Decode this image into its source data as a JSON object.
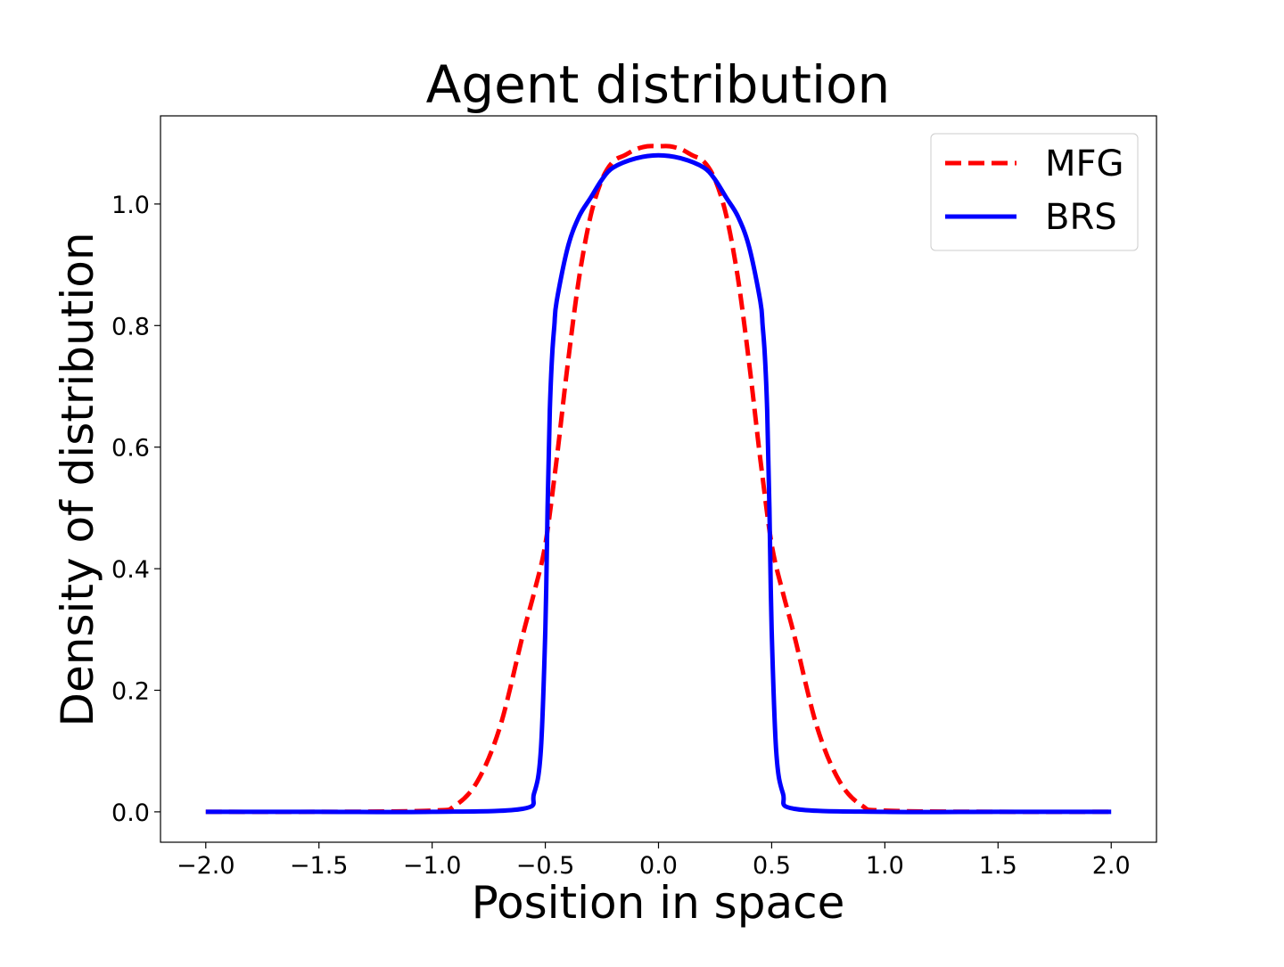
{
  "chart_data": {
    "type": "line",
    "title": "Agent distribution",
    "xlabel": "Position in space",
    "ylabel": "Density of distribution",
    "xlim": [
      -2.2,
      2.2
    ],
    "ylim": [
      -0.05,
      1.145
    ],
    "xticks": [
      -2.0,
      -1.5,
      -1.0,
      -0.5,
      0.0,
      0.5,
      1.0,
      1.5,
      2.0
    ],
    "xtick_labels": [
      "−2.0",
      "−1.5",
      "−1.0",
      "−0.5",
      "0.0",
      "0.5",
      "1.0",
      "1.5",
      "2.0"
    ],
    "yticks": [
      0.0,
      0.2,
      0.4,
      0.6,
      0.8,
      1.0
    ],
    "ytick_labels": [
      "0.0",
      "0.2",
      "0.4",
      "0.6",
      "0.8",
      "1.0"
    ],
    "grid": false,
    "legend": "top-right",
    "series": [
      {
        "name": "MFG",
        "color": "#ff0000",
        "style": "dashed",
        "x": [
          -2.0,
          -1.5,
          -1.0,
          -0.9,
          -0.8,
          -0.7,
          -0.6,
          -0.55,
          -0.5,
          -0.45,
          -0.4,
          -0.35,
          -0.3,
          -0.25,
          -0.2,
          -0.15,
          -0.1,
          -0.05,
          0.0,
          0.05,
          0.1,
          0.15,
          0.2,
          0.25,
          0.3,
          0.35,
          0.4,
          0.45,
          0.5,
          0.55,
          0.6,
          0.7,
          0.8,
          0.9,
          1.0,
          1.5,
          2.0
        ],
        "y": [
          0.0,
          0.0,
          0.002,
          0.01,
          0.05,
          0.14,
          0.29,
          0.36,
          0.44,
          0.58,
          0.74,
          0.88,
          0.98,
          1.04,
          1.07,
          1.08,
          1.09,
          1.095,
          1.095,
          1.095,
          1.09,
          1.08,
          1.07,
          1.04,
          0.98,
          0.88,
          0.74,
          0.58,
          0.44,
          0.36,
          0.29,
          0.14,
          0.05,
          0.01,
          0.002,
          0.0,
          0.0
        ]
      },
      {
        "name": "BRS",
        "color": "#0000ff",
        "style": "solid",
        "x": [
          -2.0,
          -1.5,
          -1.0,
          -0.6,
          -0.55,
          -0.52,
          -0.5,
          -0.49,
          -0.48,
          -0.47,
          -0.46,
          -0.45,
          -0.4,
          -0.35,
          -0.3,
          -0.25,
          -0.2,
          -0.1,
          0.0,
          0.1,
          0.2,
          0.25,
          0.3,
          0.35,
          0.4,
          0.45,
          0.46,
          0.47,
          0.48,
          0.49,
          0.5,
          0.52,
          0.55,
          0.6,
          1.0,
          1.5,
          2.0
        ],
        "y": [
          0.0,
          0.0,
          0.0,
          0.005,
          0.03,
          0.1,
          0.3,
          0.5,
          0.66,
          0.75,
          0.8,
          0.84,
          0.93,
          0.98,
          1.01,
          1.04,
          1.06,
          1.075,
          1.08,
          1.075,
          1.06,
          1.04,
          1.01,
          0.98,
          0.93,
          0.84,
          0.8,
          0.75,
          0.66,
          0.5,
          0.3,
          0.1,
          0.03,
          0.005,
          0.0,
          0.0,
          0.0
        ]
      }
    ]
  }
}
